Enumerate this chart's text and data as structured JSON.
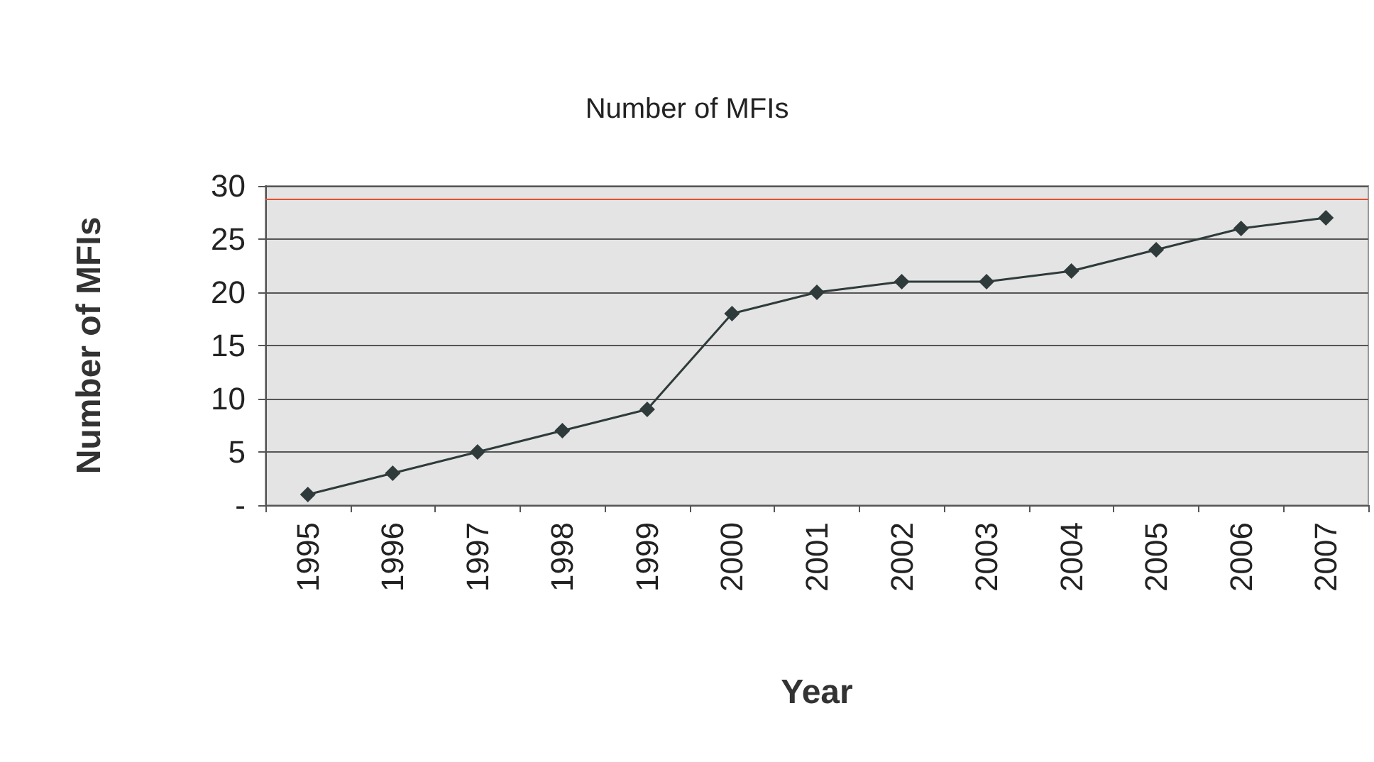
{
  "chart_data": {
    "type": "line",
    "title": "Number of MFIs",
    "xlabel": "Year",
    "ylabel": "Number of MFIs",
    "categories": [
      "1995",
      "1996",
      "1997",
      "1998",
      "1999",
      "2000",
      "2001",
      "2002",
      "2003",
      "2004",
      "2005",
      "2006",
      "2007"
    ],
    "series": [
      {
        "color": "#2f3b3b",
        "values": [
          1,
          3,
          5,
          7,
          9,
          18,
          20,
          21,
          21,
          22,
          24,
          26,
          27
        ]
      }
    ],
    "ylim": [
      0,
      30
    ],
    "yticks": [
      {
        "value": 0,
        "label": "-"
      },
      5,
      10,
      15,
      20,
      25,
      30
    ],
    "grid": "y",
    "marker": "diamond",
    "line_style": "solid",
    "ref_lines": [
      {
        "axis": "y",
        "value": 28.8,
        "color": "#e8502a"
      }
    ]
  }
}
